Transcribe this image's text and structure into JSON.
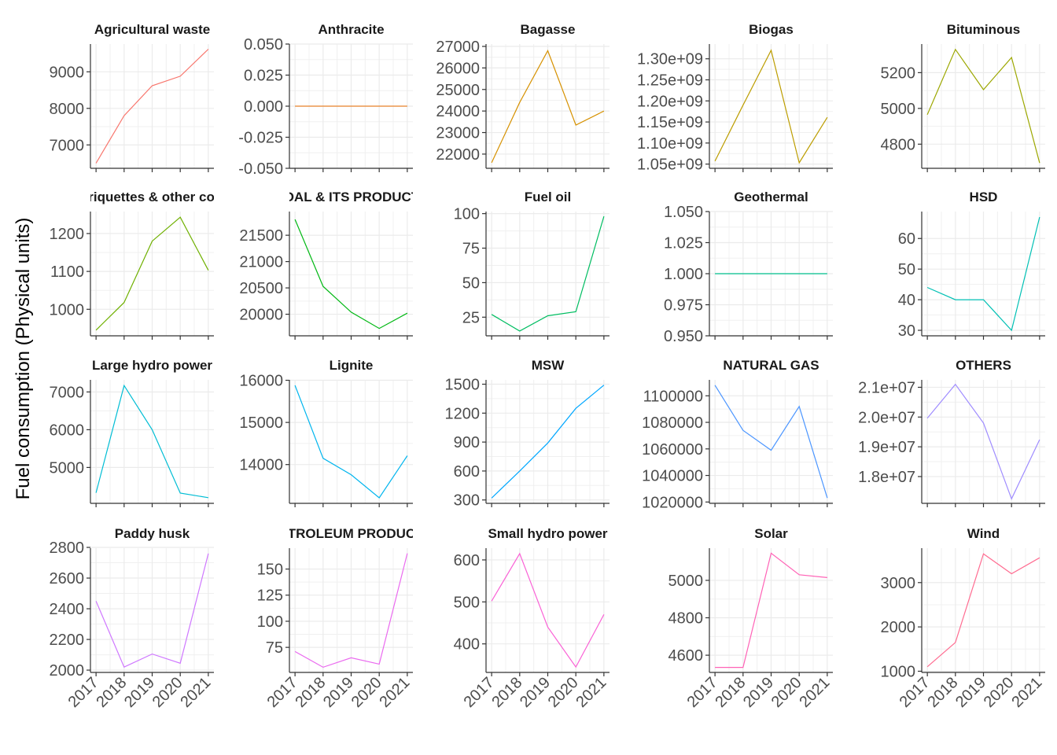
{
  "y_axis_label": "Fuel consumption (Physical units)",
  "chart_data": {
    "type": "line",
    "ylabel": "Fuel consumption (Physical units)",
    "facets": "5x4 grid, free y scales, x tick labels rotated 45 degrees, minor gridlines on",
    "x": [
      2017,
      2018,
      2019,
      2020,
      2021
    ],
    "x_tick_labels": [
      "2017",
      "2018",
      "2019",
      "2020",
      "2021"
    ],
    "panels": [
      {
        "title": "Agricultural waste",
        "color": "#F8766D",
        "values": [
          6500,
          7800,
          8620,
          8880,
          9620
        ],
        "ylim": [
          6360,
          9760
        ],
        "yticks": [
          7000,
          8000,
          9000
        ],
        "ytick_labels": [
          "7000",
          "8000",
          "9000"
        ]
      },
      {
        "title": "Anthracite",
        "color": "#E9842C",
        "values": [
          0,
          0,
          0,
          0,
          0
        ],
        "ylim": [
          -0.05,
          0.05
        ],
        "yticks": [
          -0.05,
          -0.025,
          0,
          0.025,
          0.05
        ],
        "ytick_labels": [
          "-0.050",
          "-0.025",
          "0.000",
          "0.025",
          "0.050"
        ]
      },
      {
        "title": "Bagasse",
        "color": "#D69100",
        "values": [
          21600,
          24400,
          26800,
          23350,
          24000
        ],
        "ylim": [
          21340,
          27110
        ],
        "yticks": [
          22000,
          23000,
          24000,
          25000,
          26000,
          27000
        ],
        "ytick_labels": [
          "22000",
          "23000",
          "24000",
          "25000",
          "26000",
          "27000"
        ]
      },
      {
        "title": "Biogas",
        "color": "#BC9D00",
        "values": [
          1057000000,
          1190000000,
          1320000000,
          1053000000,
          1161000000
        ],
        "ylim": [
          1040000000,
          1335000000
        ],
        "yticks": [
          1050000000,
          1100000000,
          1150000000,
          1200000000,
          1250000000,
          1300000000
        ],
        "ytick_labels": [
          "1.05e+09",
          "1.10e+09",
          "1.15e+09",
          "1.20e+09",
          "1.25e+09",
          "1.30e+09"
        ]
      },
      {
        "title": "Bituminous",
        "color": "#9CA700",
        "values": [
          4965,
          5330,
          5105,
          5285,
          4695
        ],
        "ylim": [
          4665,
          5360
        ],
        "yticks": [
          4800,
          5000,
          5200
        ],
        "ytick_labels": [
          "4800",
          "5000",
          "5200"
        ]
      },
      {
        "title": "Briquettes & other coal",
        "color": "#6FB000",
        "values": [
          945,
          1018,
          1180,
          1243,
          1103
        ],
        "ylim": [
          930,
          1258
        ],
        "yticks": [
          1000,
          1100,
          1200
        ],
        "ytick_labels": [
          "1000",
          "1100",
          "1200"
        ]
      },
      {
        "title": "COAL & ITS PRODUCTS",
        "color": "#00B813",
        "values": [
          21800,
          20530,
          20040,
          19730,
          20020
        ],
        "ylim": [
          19590,
          21950
        ],
        "yticks": [
          20000,
          20500,
          21000,
          21500
        ],
        "ytick_labels": [
          "20000",
          "20500",
          "21000",
          "21500"
        ]
      },
      {
        "title": "Fuel oil",
        "color": "#00BD61",
        "values": [
          27,
          15,
          26,
          29,
          98
        ],
        "ylim": [
          11.5,
          101.5
        ],
        "yticks": [
          25,
          50,
          75,
          100
        ],
        "ytick_labels": [
          "25",
          "50",
          "75",
          "100"
        ]
      },
      {
        "title": "Geothermal",
        "color": "#00C08E",
        "values": [
          1,
          1,
          1,
          1,
          1
        ],
        "ylim": [
          0.95,
          1.05
        ],
        "yticks": [
          0.95,
          0.975,
          1,
          1.025,
          1.05
        ],
        "ytick_labels": [
          "0.950",
          "0.975",
          "1.000",
          "1.025",
          "1.050"
        ]
      },
      {
        "title": "HSD",
        "color": "#00C0B4",
        "values": [
          44,
          40,
          40,
          30,
          67
        ],
        "ylim": [
          28.2,
          68.8
        ],
        "yticks": [
          30,
          40,
          50,
          60
        ],
        "ytick_labels": [
          "30",
          "40",
          "50",
          "60"
        ]
      },
      {
        "title": "Large hydro power",
        "color": "#00BDD4",
        "values": [
          4330,
          7170,
          6000,
          4320,
          4200
        ],
        "ylim": [
          4050,
          7320
        ],
        "yticks": [
          5000,
          6000,
          7000
        ],
        "ytick_labels": [
          "5000",
          "6000",
          "7000"
        ]
      },
      {
        "title": "Lignite",
        "color": "#00B5EE",
        "values": [
          15880,
          14150,
          13760,
          13210,
          14210
        ],
        "ylim": [
          13080,
          16010
        ],
        "yticks": [
          14000,
          15000,
          16000
        ],
        "ytick_labels": [
          "14000",
          "15000",
          "16000"
        ]
      },
      {
        "title": "MSW",
        "color": "#00A7FF",
        "values": [
          320,
          600,
          890,
          1250,
          1490
        ],
        "ylim": [
          265,
          1545
        ],
        "yticks": [
          300,
          600,
          900,
          1200,
          1500
        ],
        "ytick_labels": [
          "300",
          "600",
          "900",
          "1200",
          "1500"
        ]
      },
      {
        "title": "NATURAL GAS",
        "color": "#4C96FF",
        "values": [
          1108000,
          1074000,
          1059000,
          1092000,
          1023000
        ],
        "ylim": [
          1019000,
          1112000
        ],
        "yticks": [
          1020000,
          1040000,
          1060000,
          1080000,
          1100000
        ],
        "ytick_labels": [
          "1020000",
          "1040000",
          "1060000",
          "1080000",
          "1100000"
        ]
      },
      {
        "title": "OTHERS",
        "color": "#9F8CFF",
        "values": [
          19960000,
          21100000,
          19800000,
          17250000,
          19240000
        ],
        "ylim": [
          17100000,
          21250000
        ],
        "yticks": [
          18000000,
          19000000,
          20000000,
          21000000
        ],
        "ytick_labels": [
          "1.8e+07",
          "1.9e+07",
          "2.0e+07",
          "2.1e+07"
        ]
      },
      {
        "title": "Paddy husk",
        "color": "#CF78FF",
        "values": [
          2450,
          2020,
          2105,
          2045,
          2760
        ],
        "ylim": [
          1985,
          2795
        ],
        "yticks": [
          2000,
          2200,
          2400,
          2600,
          2800
        ],
        "ytick_labels": [
          "2000",
          "2200",
          "2400",
          "2600",
          "2800"
        ]
      },
      {
        "title": "PETROLEUM PRODUCTS",
        "color": "#EA6AEF",
        "values": [
          71,
          56,
          65,
          59,
          165
        ],
        "ylim": [
          51,
          170
        ],
        "yticks": [
          75,
          100,
          125,
          150
        ],
        "ytick_labels": [
          "75",
          "100",
          "125",
          "150"
        ]
      },
      {
        "title": "Small hydro power",
        "color": "#FA62D6",
        "values": [
          502,
          615,
          440,
          345,
          470
        ],
        "ylim": [
          332,
          628
        ],
        "yticks": [
          400,
          500,
          600
        ],
        "ytick_labels": [
          "400",
          "500",
          "600"
        ]
      },
      {
        "title": "Solar",
        "color": "#FF62B6",
        "values": [
          4535,
          4535,
          5145,
          5030,
          5015
        ],
        "ylim": [
          4508,
          5172
        ],
        "yticks": [
          4600,
          4800,
          5000
        ],
        "ytick_labels": [
          "4600",
          "4800",
          "5000"
        ]
      },
      {
        "title": "Wind",
        "color": "#FF6C91",
        "values": [
          1100,
          1650,
          3650,
          3200,
          3560
        ],
        "ylim": [
          973,
          3777
        ],
        "yticks": [
          1000,
          2000,
          3000
        ],
        "ytick_labels": [
          "1000",
          "2000",
          "3000"
        ]
      }
    ]
  }
}
